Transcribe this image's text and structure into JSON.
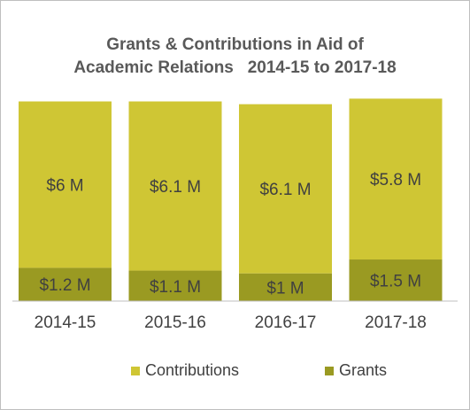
{
  "chart_data": {
    "type": "bar",
    "stacked": true,
    "title_lines": [
      "Grants & Contributions in Aid of",
      "Academic Relations   2014-15 to 2017-18"
    ],
    "categories": [
      "2014-15",
      "2015-16",
      "2016-17",
      "2017-18"
    ],
    "series": [
      {
        "name": "Grants",
        "values": [
          1.2,
          1.1,
          1.0,
          1.5
        ],
        "labels": [
          "$1.2 M",
          "$1.1 M",
          "$1 M",
          "$1.5 M"
        ],
        "color": "#9a9a22"
      },
      {
        "name": "Contributions",
        "values": [
          6.0,
          6.1,
          6.1,
          5.8
        ],
        "labels": [
          "$6 M",
          "$6.1 M",
          "$6.1 M",
          "$5.8 M"
        ],
        "color": "#cfc634"
      }
    ],
    "legend_position": "bottom",
    "legend_order": [
      "Contributions",
      "Grants"
    ],
    "grid": false,
    "ylim": [
      0,
      7.6
    ]
  }
}
